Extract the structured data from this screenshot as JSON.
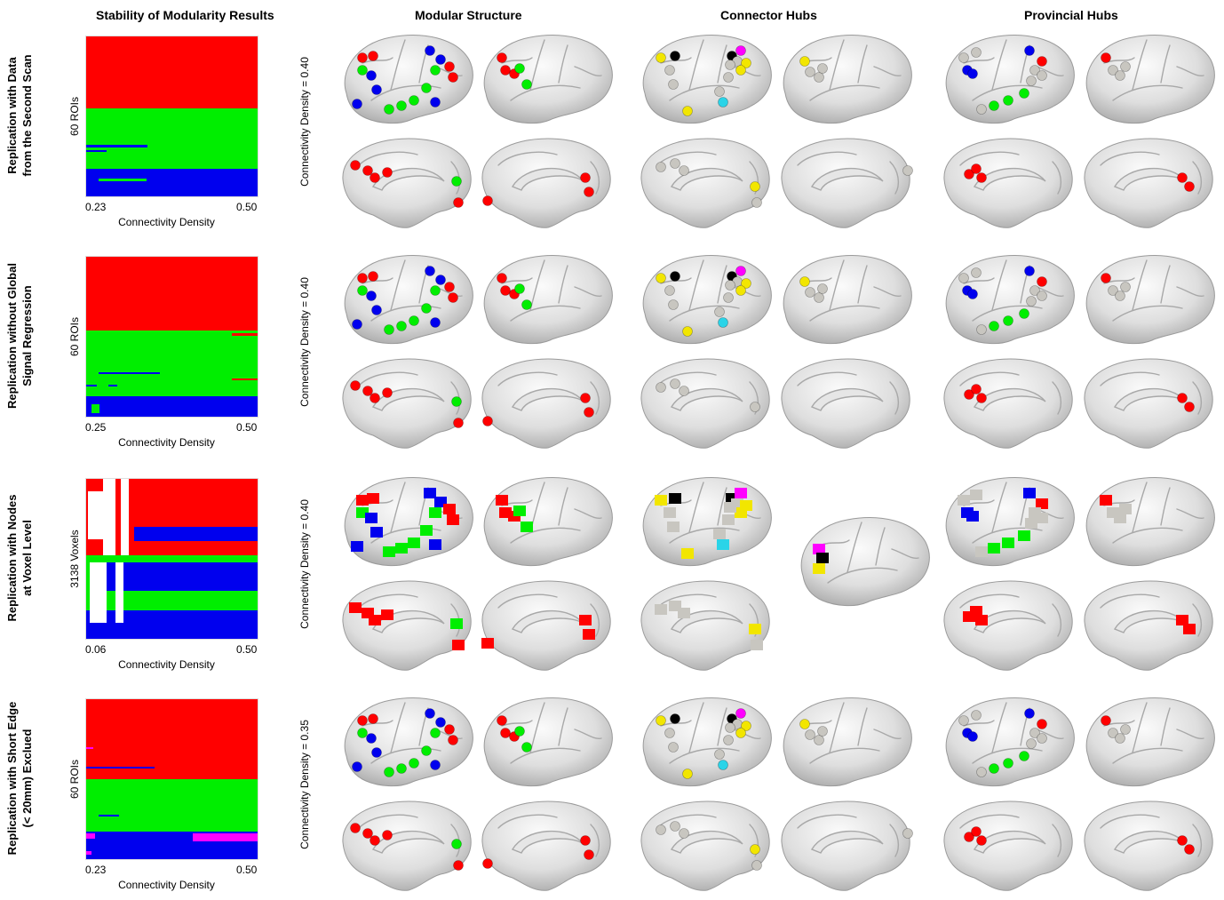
{
  "headers": {
    "stability": "Stability of Modularity Results",
    "modular": "Modular Structure",
    "connector": "Connector Hubs",
    "provincial": "Provincial Hubs"
  },
  "colors": {
    "red": "#ff0000",
    "green": "#00ee00",
    "blue": "#0000ee",
    "yellow": "#f2e600",
    "black": "#000000",
    "magenta": "#ff00ff",
    "cyan": "#2ad4e8",
    "gray": "#c8c6c0"
  },
  "rows": [
    {
      "label_line1": "Replication with Data",
      "label_line2": "from the Second Scan",
      "ylabel": "60 ROIs",
      "xmin": "0.23",
      "xmax": "0.50",
      "xlabel": "Connectivity Density",
      "density": "Connectivity Density = 0.40"
    },
    {
      "label_line1": "Replication without Global",
      "label_line2": "Signal Regression",
      "ylabel": "60 ROIs",
      "xmin": "0.25",
      "xmax": "0.50",
      "xlabel": "Connectivity Density",
      "density": "Connectivity Density = 0.40"
    },
    {
      "label_line1": "Replication with Nodes",
      "label_line2": "at Voxel Level",
      "ylabel": "3138 Voxels",
      "xmin": "0.06",
      "xmax": "0.50",
      "xlabel": "Connectivity Density",
      "density": "Connectivity Density = 0.40"
    },
    {
      "label_line1": "Replication with Short Edge",
      "label_line2": "(< 20mm) Exclued",
      "ylabel": "60 ROIs",
      "xmin": "0.23",
      "xmax": "0.50",
      "xlabel": "Connectivity Density",
      "density": "Connectivity Density = 0.35"
    }
  ]
}
